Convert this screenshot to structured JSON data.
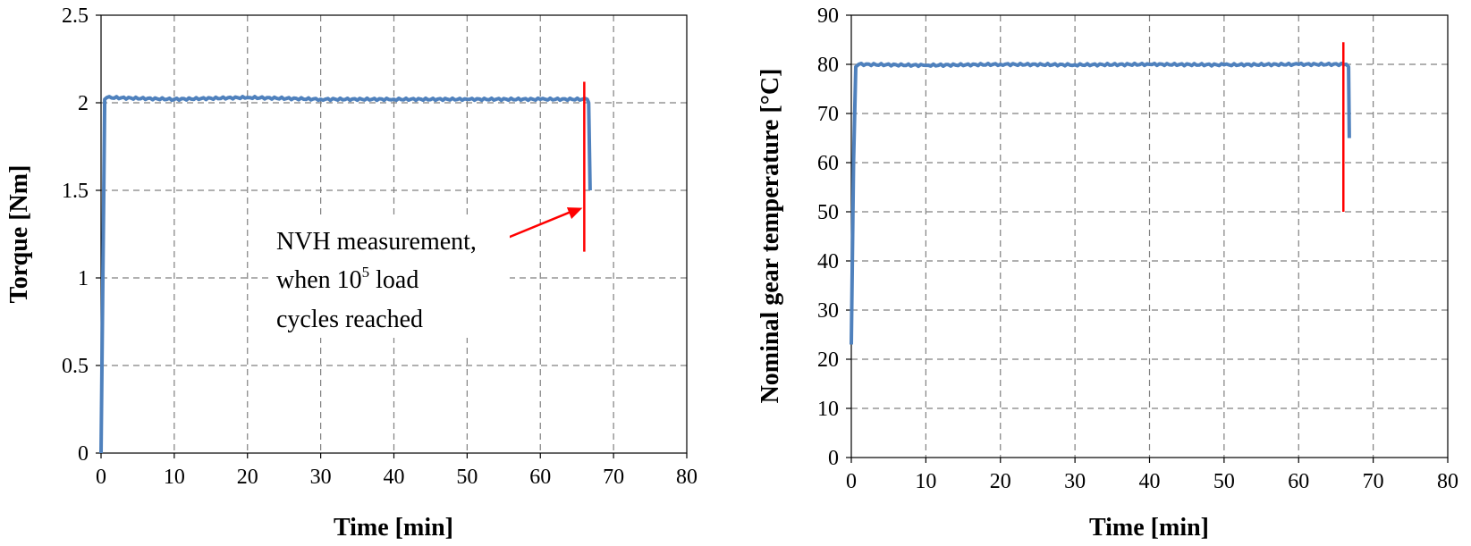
{
  "chart_data": [
    {
      "type": "line",
      "xlabel": "Time [min]",
      "ylabel": "Torque [Nm]",
      "xlim": [
        0,
        80
      ],
      "ylim": [
        0,
        2.5
      ],
      "x_ticks": [
        "0",
        "10",
        "20",
        "30",
        "40",
        "50",
        "60",
        "70",
        "80"
      ],
      "y_ticks": [
        "0",
        "0.5",
        "1",
        "1.5",
        "2",
        "2.5"
      ],
      "grid": true,
      "colors": {
        "series": "#4f81bd",
        "marker": "#ff0000"
      },
      "series": [
        {
          "x": [
            0,
            0.5,
            0.8,
            10,
            20,
            30,
            40,
            50,
            60,
            66.4,
            66.6,
            66.8
          ],
          "y": [
            0,
            2.02,
            2.03,
            2.02,
            2.03,
            2.02,
            2.02,
            2.02,
            2.02,
            2.02,
            2.0,
            1.5
          ]
        }
      ],
      "marker": {
        "x": 66.0,
        "y_range": [
          1.15,
          2.12
        ]
      },
      "annotation": {
        "lines": [
          "NVH measurement,",
          "when 10",
          "5",
          " load",
          "cycles reached"
        ],
        "arrow_to": {
          "x": 66.0,
          "y": 1.4
        }
      }
    },
    {
      "type": "line",
      "xlabel": "Time [min]",
      "ylabel": "Nominal gear temperature [°C]",
      "xlim": [
        0,
        80
      ],
      "ylim": [
        0,
        90
      ],
      "x_ticks": [
        "0",
        "10",
        "20",
        "30",
        "40",
        "50",
        "60",
        "70",
        "80"
      ],
      "y_ticks": [
        "0",
        "10",
        "20",
        "30",
        "40",
        "50",
        "60",
        "70",
        "80",
        "90"
      ],
      "grid": true,
      "colors": {
        "series": "#4f81bd",
        "marker": "#ff0000"
      },
      "series": [
        {
          "x": [
            0,
            0.3,
            0.6,
            1.0,
            10,
            20,
            30,
            40,
            50,
            60,
            66.4,
            66.7,
            66.8
          ],
          "y": [
            23,
            60,
            79.5,
            80,
            79.8,
            80,
            79.9,
            80,
            79.9,
            80,
            80,
            79.5,
            65
          ]
        }
      ],
      "marker": {
        "x": 66.0,
        "y_range": [
          50,
          84.5
        ]
      }
    }
  ]
}
